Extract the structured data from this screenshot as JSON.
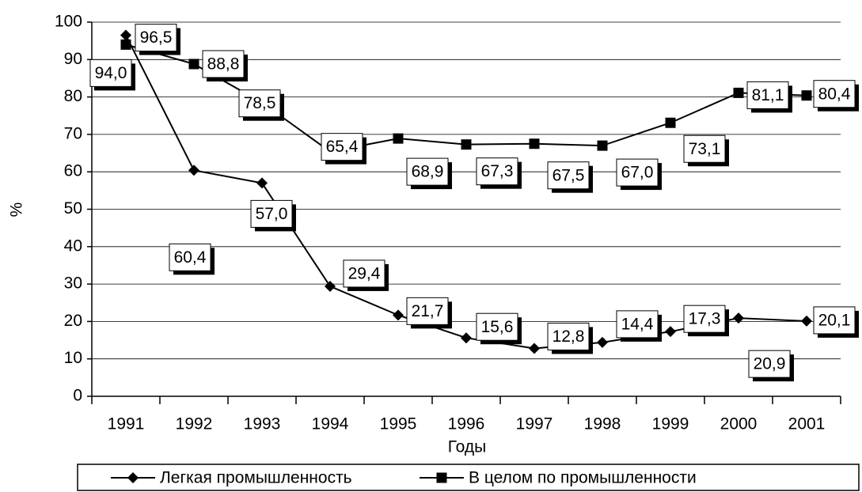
{
  "chart_data": {
    "type": "line",
    "x_label": "Годы",
    "y_label": "%",
    "categories": [
      "1991",
      "1992",
      "1993",
      "1994",
      "1995",
      "1996",
      "1997",
      "1998",
      "1999",
      "2000",
      "2001"
    ],
    "series": [
      {
        "name": "Легкая промышленность",
        "color": "#000000",
        "marker": "diamond",
        "values": [
          96.5,
          60.4,
          57.0,
          29.4,
          21.7,
          15.6,
          12.8,
          14.4,
          17.3,
          20.9,
          20.1
        ],
        "value_labels": [
          "96,5",
          "60,4",
          "57,0",
          "29,4",
          "21,7",
          "15,6",
          "12,8",
          "14,4",
          "17,3",
          "20,9",
          "20,1"
        ]
      },
      {
        "name": "В целом по промышленности",
        "color": "#000000",
        "marker": "square",
        "values": [
          94.0,
          88.8,
          78.5,
          65.4,
          68.9,
          67.3,
          67.5,
          67.0,
          73.1,
          81.1,
          80.4
        ],
        "value_labels": [
          "94,0",
          "88,8",
          "78,5",
          "65,4",
          "68,9",
          "67,3",
          "67,5",
          "67,0",
          "73,1",
          "81,1",
          "80,4"
        ]
      }
    ],
    "ylim": [
      0,
      100
    ],
    "yticks": [
      0,
      10,
      20,
      30,
      40,
      50,
      60,
      70,
      80,
      90,
      100
    ],
    "grid": true,
    "legend": "bottom"
  }
}
